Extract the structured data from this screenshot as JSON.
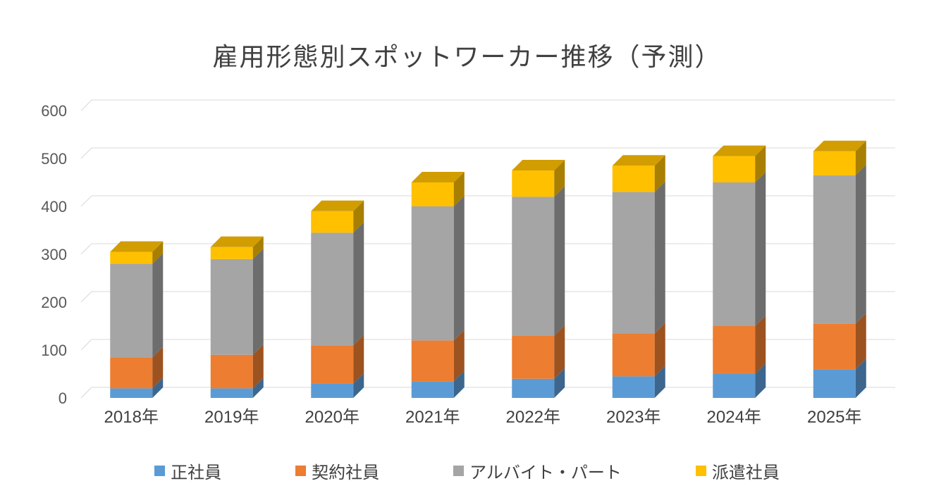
{
  "title": "雇用形態別スポットワーカー推移（予測）",
  "chart_data": {
    "type": "bar",
    "subtype": "stacked-3d-column",
    "title": "雇用形態別スポットワーカー推移（予測）",
    "categories": [
      "2018年",
      "2019年",
      "2020年",
      "2021年",
      "2022年",
      "2023年",
      "2024年",
      "2025年"
    ],
    "series": [
      {
        "name": "正社員",
        "color": "#5B9BD5",
        "values": [
          20,
          20,
          30,
          35,
          40,
          45,
          50,
          60
        ]
      },
      {
        "name": "契約社員",
        "color": "#ED7D31",
        "values": [
          65,
          70,
          80,
          85,
          90,
          90,
          100,
          95
        ]
      },
      {
        "name": "アルバイト・パート",
        "color": "#A5A5A5",
        "values": [
          195,
          200,
          235,
          280,
          290,
          295,
          300,
          310
        ]
      },
      {
        "name": "派遣社員",
        "color": "#FFC000",
        "values": [
          25,
          25,
          45,
          50,
          55,
          55,
          55,
          50
        ]
      }
    ],
    "totals": [
      305,
      315,
      390,
      450,
      475,
      485,
      505,
      515
    ],
    "xlabel": "",
    "ylabel": "",
    "ylim": [
      0,
      600
    ],
    "ytick_step": 100,
    "yticks": [
      "0",
      "100",
      "200",
      "300",
      "400",
      "500",
      "600"
    ],
    "grid": true,
    "legend_position": "bottom",
    "gridline_color": "#D9D9D9",
    "axis_text_color": "#595959",
    "title_color": "#404040"
  }
}
